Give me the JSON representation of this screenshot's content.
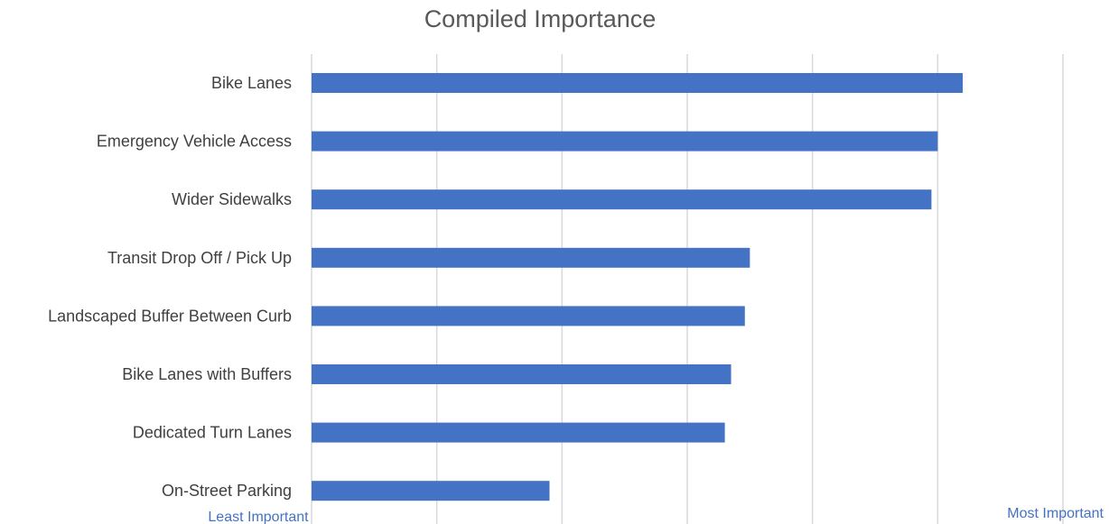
{
  "chart_data": {
    "type": "bar",
    "orientation": "horizontal",
    "title": "Compiled Importance",
    "categories": [
      "Bike Lanes",
      "Emergency Vehicle Access",
      "Wider Sidewalks",
      "Transit Drop Off / Pick Up",
      "Landscaped Buffer Between Curb",
      "Bike Lanes with Buffers",
      "Dedicated Turn Lanes",
      "On-Street Parking"
    ],
    "values": [
      5.2,
      5.0,
      4.95,
      3.5,
      3.46,
      3.35,
      3.3,
      1.9
    ],
    "xlim": [
      0,
      6
    ],
    "grid": true,
    "legend": "none",
    "bar_color": "#4472c4",
    "axis_notes": {
      "low": "Least Important",
      "high": "Most Important"
    }
  }
}
